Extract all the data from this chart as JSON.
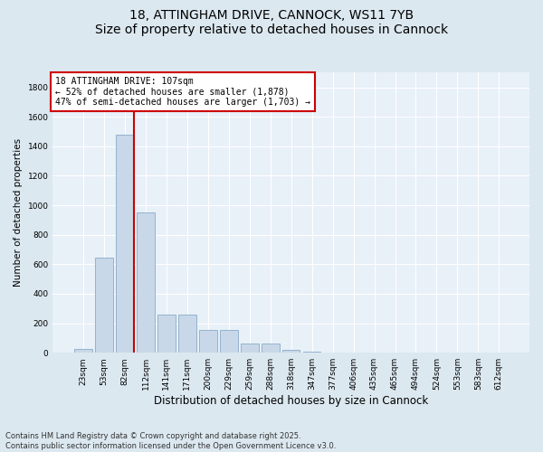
{
  "title": "18, ATTINGHAM DRIVE, CANNOCK, WS11 7YB",
  "subtitle": "Size of property relative to detached houses in Cannock",
  "xlabel": "Distribution of detached houses by size in Cannock",
  "ylabel": "Number of detached properties",
  "categories": [
    "23sqm",
    "53sqm",
    "82sqm",
    "112sqm",
    "141sqm",
    "171sqm",
    "200sqm",
    "229sqm",
    "259sqm",
    "288sqm",
    "318sqm",
    "347sqm",
    "377sqm",
    "406sqm",
    "435sqm",
    "465sqm",
    "494sqm",
    "524sqm",
    "553sqm",
    "583sqm",
    "612sqm"
  ],
  "values": [
    28,
    645,
    1480,
    950,
    260,
    260,
    155,
    155,
    65,
    65,
    20,
    5,
    3,
    0,
    0,
    0,
    0,
    0,
    0,
    0,
    0
  ],
  "bar_color": "#c8d8e8",
  "bar_edge_color": "#8aaac8",
  "vline_color": "#cc0000",
  "annotation_text": "18 ATTINGHAM DRIVE: 107sqm\n← 52% of detached houses are smaller (1,878)\n47% of semi-detached houses are larger (1,703) →",
  "annotation_box_facecolor": "#ffffff",
  "annotation_box_edgecolor": "#cc0000",
  "ylim": [
    0,
    1900
  ],
  "yticks": [
    0,
    200,
    400,
    600,
    800,
    1000,
    1200,
    1400,
    1600,
    1800
  ],
  "bg_color": "#dce8f0",
  "plot_bg_color": "#e8f0f8",
  "grid_color": "#ffffff",
  "footer": "Contains HM Land Registry data © Crown copyright and database right 2025.\nContains public sector information licensed under the Open Government Licence v3.0.",
  "title_fontsize": 10,
  "xlabel_fontsize": 8.5,
  "ylabel_fontsize": 7.5,
  "tick_fontsize": 6.5,
  "annotation_fontsize": 7,
  "footer_fontsize": 6
}
